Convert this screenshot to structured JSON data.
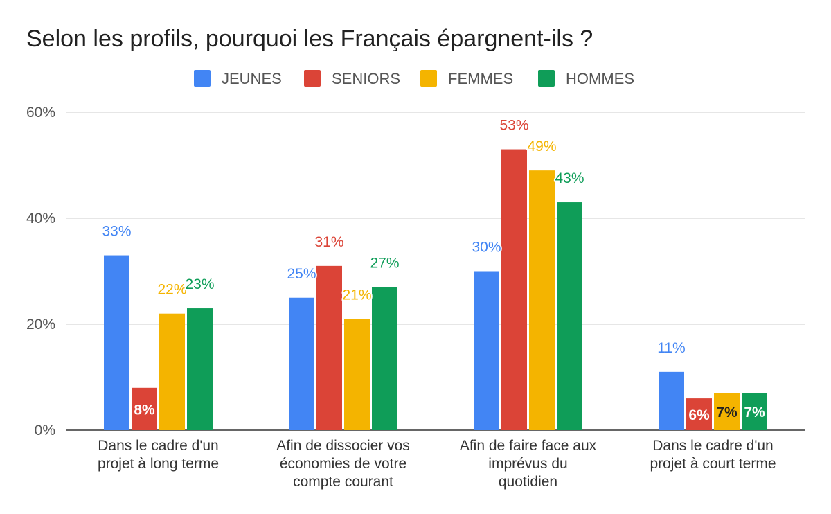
{
  "chart_data": {
    "type": "bar",
    "title": "Selon les profils, pourquoi les Français épargnent-ils ?",
    "categories": [
      [
        "Dans le cadre d'un",
        "projet à long terme"
      ],
      [
        "Afin de dissocier vos",
        "économies de votre",
        "compte courant"
      ],
      [
        "Afin de faire face aux",
        "imprévus du",
        "quotidien"
      ],
      [
        "Dans le cadre d'un",
        "projet à court terme"
      ]
    ],
    "series": [
      {
        "name": "JEUNES",
        "color": "#4285f4",
        "values": [
          33,
          25,
          30,
          11
        ],
        "labels": [
          "33%",
          "25%",
          "30%",
          "11%"
        ]
      },
      {
        "name": "SENIORS",
        "color": "#db4437",
        "values": [
          8,
          31,
          53,
          6
        ],
        "labels": [
          "8%",
          "31%",
          "53%",
          "6%"
        ]
      },
      {
        "name": "FEMMES",
        "color": "#f4b400",
        "values": [
          22,
          21,
          49,
          7
        ],
        "labels": [
          "22%",
          "21%",
          "49%",
          "7%"
        ]
      },
      {
        "name": "HOMMES",
        "color": "#0f9d58",
        "values": [
          23,
          27,
          43,
          7
        ],
        "labels": [
          "23%",
          "27%",
          "43%",
          "7%"
        ]
      }
    ],
    "ylim": [
      0,
      60
    ],
    "yticks": [
      {
        "value": 0,
        "label": "0%"
      },
      {
        "value": 20,
        "label": "20%"
      },
      {
        "value": 40,
        "label": "40%"
      },
      {
        "value": 60,
        "label": "60%"
      }
    ],
    "grid": true,
    "legend_position": "top"
  }
}
